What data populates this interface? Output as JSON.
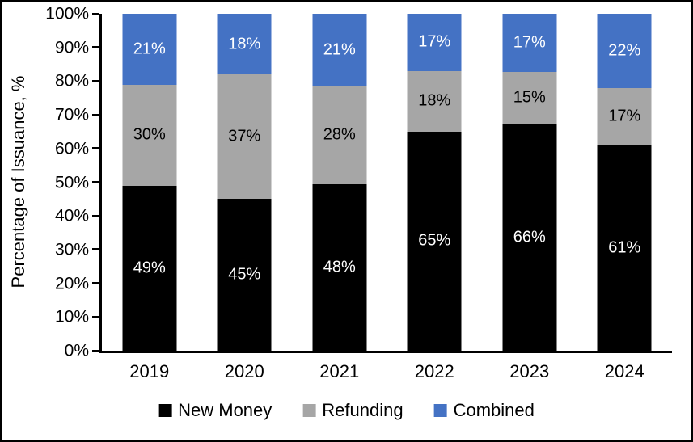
{
  "chart_data": {
    "type": "bar",
    "stacked": true,
    "percent_stacked": true,
    "title": "",
    "ylabel": "Percentage of Issuance, %",
    "xlabel": "",
    "ylim": [
      0,
      100
    ],
    "grid": false,
    "legend_position": "bottom",
    "y_ticks": [
      "0%",
      "10%",
      "20%",
      "30%",
      "40%",
      "50%",
      "60%",
      "70%",
      "80%",
      "90%",
      "100%"
    ],
    "categories": [
      "2019",
      "2020",
      "2021",
      "2022",
      "2023",
      "2024"
    ],
    "series": [
      {
        "name": "New Money",
        "color": "#000000",
        "label_color": "#ffffff",
        "values": [
          49,
          45,
          48,
          65,
          66,
          61
        ],
        "labels": [
          "49%",
          "45%",
          "48%",
          "65%",
          "66%",
          "61%"
        ]
      },
      {
        "name": "Refunding",
        "color": "#A6A6A6",
        "label_color": "#000000",
        "values": [
          30,
          37,
          28,
          18,
          15,
          17
        ],
        "labels": [
          "30%",
          "37%",
          "28%",
          "18%",
          "15%",
          "17%"
        ]
      },
      {
        "name": "Combined",
        "color": "#4472C4",
        "label_color": "#ffffff",
        "values": [
          21,
          18,
          21,
          17,
          17,
          22
        ],
        "labels": [
          "21%",
          "18%",
          "21%",
          "17%",
          "17%",
          "22%"
        ]
      }
    ],
    "colors": {
      "axis": "#000000",
      "background": "#ffffff",
      "frame_border": "#000000"
    }
  }
}
